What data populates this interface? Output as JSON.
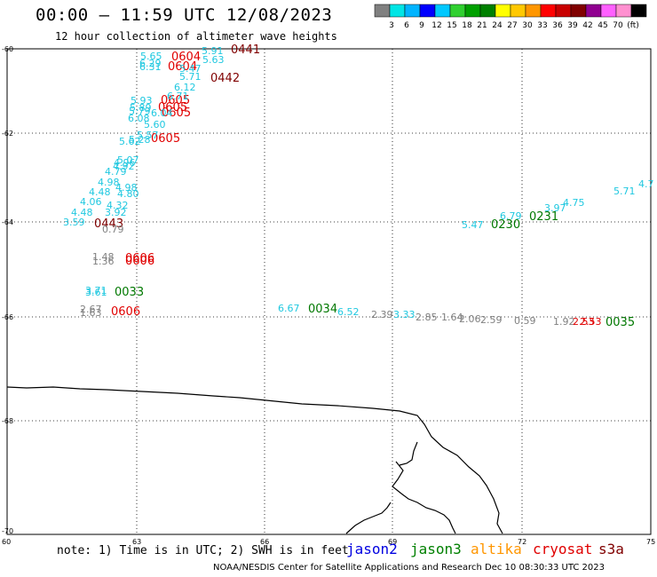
{
  "header": {
    "title": "00:00 – 11:59 UTC 12/08/2023",
    "subtitle": "12 hour collection of altimeter wave heights"
  },
  "color_scale": {
    "unit": "(ft)",
    "colors": [
      "#808080",
      "#00e5e5",
      "#00b4ff",
      "#0000ff",
      "#00c8ff",
      "#30d030",
      "#00a000",
      "#008000",
      "#ffff00",
      "#ffc800",
      "#ff9600",
      "#ff0000",
      "#c80000",
      "#800000",
      "#900090",
      "#ff60ff",
      "#ff90d0",
      "#000000"
    ],
    "labels": [
      "3",
      "6",
      "9",
      "12",
      "15",
      "18",
      "21",
      "24",
      "27",
      "30",
      "33",
      "36",
      "39",
      "42",
      "45",
      "70"
    ]
  },
  "map": {
    "lat_labels": [
      "-60",
      "-62",
      "-64",
      "-66",
      "-68",
      "-70"
    ],
    "lon_labels": [
      "60",
      "63",
      "66",
      "69",
      "72",
      "75"
    ],
    "colors": {
      "cyan": "#20c8e0",
      "gray": "#808080",
      "red": "#e00000",
      "darkred": "#800000",
      "green": "#007800"
    },
    "time_labels": [
      {
        "text": "0441",
        "color": "darkred"
      },
      {
        "text": "0604",
        "color": "red"
      },
      {
        "text": "0604",
        "color": "red"
      },
      {
        "text": "0442",
        "color": "darkred"
      },
      {
        "text": "0605",
        "color": "red"
      },
      {
        "text": "0605",
        "color": "red"
      },
      {
        "text": "0605",
        "color": "red"
      },
      {
        "text": "0605",
        "color": "red"
      },
      {
        "text": "0443",
        "color": "darkred"
      },
      {
        "text": "0606",
        "color": "red"
      },
      {
        "text": "0606",
        "color": "red"
      },
      {
        "text": "0606",
        "color": "red"
      },
      {
        "text": "0033",
        "color": "green"
      },
      {
        "text": "0034",
        "color": "green"
      },
      {
        "text": "0035",
        "color": "green"
      },
      {
        "text": "0230",
        "color": "green"
      },
      {
        "text": "0231",
        "color": "green"
      }
    ],
    "value_labels": [
      {
        "text": "5.91",
        "color": "cyan"
      },
      {
        "text": "5.65",
        "color": "cyan"
      },
      {
        "text": "5.63",
        "color": "cyan"
      },
      {
        "text": "6.29",
        "color": "cyan"
      },
      {
        "text": "5.47",
        "color": "cyan"
      },
      {
        "text": "6.31",
        "color": "cyan"
      },
      {
        "text": "5.71",
        "color": "cyan"
      },
      {
        "text": "6.12",
        "color": "cyan"
      },
      {
        "text": "5.93",
        "color": "cyan"
      },
      {
        "text": "6.71",
        "color": "cyan"
      },
      {
        "text": "5.89",
        "color": "cyan"
      },
      {
        "text": "5.79",
        "color": "cyan"
      },
      {
        "text": "6.08",
        "color": "cyan"
      },
      {
        "text": "6.04",
        "color": "cyan"
      },
      {
        "text": "5.60",
        "color": "cyan"
      },
      {
        "text": "5.57",
        "color": "cyan"
      },
      {
        "text": "5.62",
        "color": "cyan"
      },
      {
        "text": "5.28",
        "color": "cyan"
      },
      {
        "text": "4.96",
        "color": "cyan"
      },
      {
        "text": "5.07",
        "color": "cyan"
      },
      {
        "text": "4.92",
        "color": "cyan"
      },
      {
        "text": "4.79",
        "color": "cyan"
      },
      {
        "text": "4.98",
        "color": "cyan"
      },
      {
        "text": "4.98",
        "color": "cyan"
      },
      {
        "text": "4.48",
        "color": "cyan"
      },
      {
        "text": "4.80",
        "color": "cyan"
      },
      {
        "text": "4.06",
        "color": "cyan"
      },
      {
        "text": "4.32",
        "color": "cyan"
      },
      {
        "text": "4.48",
        "color": "cyan"
      },
      {
        "text": "3.92",
        "color": "cyan"
      },
      {
        "text": "3.59",
        "color": "cyan"
      },
      {
        "text": "0.79",
        "color": "gray"
      },
      {
        "text": "1.48",
        "color": "gray"
      },
      {
        "text": "1.36",
        "color": "gray"
      },
      {
        "text": "3.71",
        "color": "cyan"
      },
      {
        "text": "3.61",
        "color": "cyan"
      },
      {
        "text": "2.67",
        "color": "gray"
      },
      {
        "text": "1.63",
        "color": "gray"
      },
      {
        "text": "6.67",
        "color": "cyan"
      },
      {
        "text": "6.52",
        "color": "cyan"
      },
      {
        "text": "2.39",
        "color": "gray"
      },
      {
        "text": "3.33",
        "color": "cyan"
      },
      {
        "text": "2.85",
        "color": "gray"
      },
      {
        "text": "1.64",
        "color": "gray"
      },
      {
        "text": "2.06",
        "color": "gray"
      },
      {
        "text": "2.59",
        "color": "gray"
      },
      {
        "text": "0.59",
        "color": "gray"
      },
      {
        "text": "1.92",
        "color": "gray"
      },
      {
        "text": "2.53",
        "color": "red"
      },
      {
        "text": "2.53",
        "color": "red"
      },
      {
        "text": "5.47",
        "color": "cyan"
      },
      {
        "text": "6.79",
        "color": "cyan"
      },
      {
        "text": "3.97",
        "color": "cyan"
      },
      {
        "text": "4.75",
        "color": "cyan"
      },
      {
        "text": "5.71",
        "color": "cyan"
      },
      {
        "text": "4.7",
        "color": "cyan"
      }
    ]
  },
  "footer": {
    "note": "note: 1) Time is in UTC; 2) SWH is in feet",
    "satellites": [
      {
        "name": "jason2",
        "color": "#0000e0"
      },
      {
        "name": "jason3",
        "color": "#008000"
      },
      {
        "name": "altika",
        "color": "#ff9600"
      },
      {
        "name": "cryosat",
        "color": "#e00000"
      },
      {
        "name": "s3a",
        "color": "#800000"
      }
    ],
    "credit": "NOAA/NESDIS Center for Satellite Applications and Research    Dec 10 08:30:33 UTC 2023"
  }
}
